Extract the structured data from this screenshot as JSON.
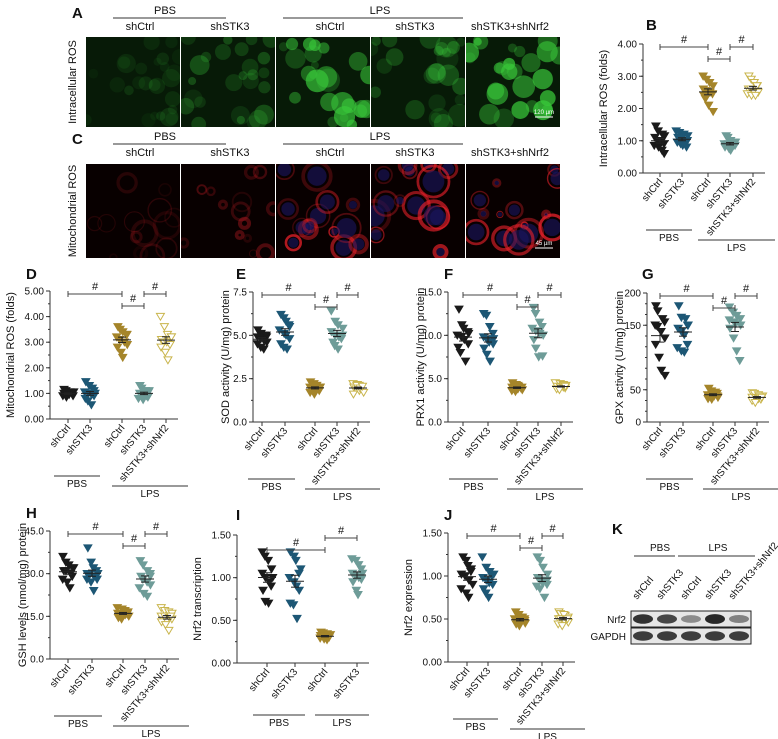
{
  "micrographs": {
    "A": {
      "label": "A",
      "row_label": "Intracellular ROS",
      "groups": [
        "PBS",
        "LPS"
      ],
      "columns": [
        "shCtrl",
        "shSTK3",
        "shCtrl",
        "shSTK3",
        "shSTK3+shNrf2"
      ],
      "scale_bar": "120 µm",
      "stain_color": "#39c83a"
    },
    "C": {
      "label": "C",
      "row_label": "Mitochondrial ROS",
      "groups": [
        "PBS",
        "LPS"
      ],
      "columns": [
        "shCtrl",
        "shSTK3",
        "shCtrl",
        "shSTK3",
        "shSTK3+shNrf2"
      ],
      "scale_bar": "45 µm",
      "stain_color": "#e8202a"
    }
  },
  "group_colors": [
    "#1a1a1a",
    "#1d5775",
    "#a5852a",
    "#6e9c98",
    "#c9b54c"
  ],
  "group_filled": [
    true,
    true,
    true,
    true,
    false
  ],
  "chart_data": [
    {
      "panel": "B",
      "type": "scatter",
      "ylabel": "Intracellular ROS (folds)",
      "yticks": [
        "0.00",
        "1.00",
        "2.00",
        "3.00",
        "4.00"
      ],
      "ylim": [
        0,
        4
      ],
      "categories": [
        "shCtrl",
        "shSTK3",
        "shCtrl",
        "shSTK3",
        "shSTK3+shNrf2"
      ],
      "groups": [
        "PBS",
        "PBS",
        "LPS",
        "LPS",
        "LPS"
      ],
      "significance": [
        {
          "pair": [
            0,
            2
          ],
          "label": "#"
        },
        {
          "pair": [
            2,
            3
          ],
          "label": "#"
        },
        {
          "pair": [
            3,
            4
          ],
          "label": "#"
        }
      ],
      "series": [
        [
          1.45,
          1.3,
          1.2,
          1.15,
          1.1,
          1.0,
          0.95,
          0.9,
          0.85,
          0.8,
          0.7,
          0.6
        ],
        [
          1.3,
          1.25,
          1.2,
          1.15,
          1.1,
          1.05,
          1.0,
          1.0,
          0.95,
          0.9,
          0.85,
          0.8
        ],
        [
          3.0,
          2.9,
          2.8,
          2.7,
          2.6,
          2.55,
          2.5,
          2.45,
          2.4,
          2.3,
          2.1,
          1.9
        ],
        [
          1.15,
          1.1,
          1.0,
          0.95,
          0.9,
          0.9,
          0.85,
          0.85,
          0.8,
          0.75,
          0.7,
          0.95
        ],
        [
          3.0,
          2.9,
          2.8,
          2.7,
          2.6,
          2.6,
          2.5,
          2.5,
          2.45,
          2.4,
          2.4,
          2.7
        ]
      ]
    },
    {
      "panel": "D",
      "type": "scatter",
      "ylabel": "Mitochondrial ROS (folds)",
      "yticks": [
        "0.00",
        "1.00",
        "2.00",
        "3.00",
        "4.00",
        "5.00"
      ],
      "ylim": [
        0,
        5
      ],
      "categories": [
        "shCtrl",
        "shSTK3",
        "shCtrl",
        "shSTK3",
        "shSTK3+shNrf2"
      ],
      "groups": [
        "PBS",
        "PBS",
        "LPS",
        "LPS",
        "LPS"
      ],
      "significance": [
        {
          "pair": [
            0,
            2
          ],
          "label": "#"
        },
        {
          "pair": [
            2,
            3
          ],
          "label": "#"
        },
        {
          "pair": [
            3,
            4
          ],
          "label": "#"
        }
      ],
      "series": [
        [
          1.15,
          1.1,
          1.05,
          1.0,
          1.0,
          0.95,
          0.95,
          0.9,
          0.9,
          0.85,
          1.0,
          1.05
        ],
        [
          1.45,
          1.3,
          1.2,
          1.1,
          1.05,
          1.0,
          0.95,
          0.9,
          0.8,
          0.7,
          0.55,
          1.0
        ],
        [
          3.6,
          3.5,
          3.4,
          3.3,
          3.2,
          3.1,
          3.0,
          2.9,
          2.8,
          2.6,
          2.4,
          3.3
        ],
        [
          1.3,
          1.2,
          1.1,
          1.05,
          1.0,
          0.95,
          0.9,
          0.85,
          0.8,
          0.75,
          1.0,
          1.1
        ],
        [
          4.0,
          3.6,
          3.3,
          3.2,
          3.1,
          3.0,
          3.0,
          2.9,
          2.8,
          2.6,
          2.3,
          3.2
        ]
      ]
    },
    {
      "panel": "E",
      "type": "scatter",
      "ylabel": "SOD activity (U/mg) protein",
      "yticks": [
        "0.0",
        "2.5",
        "5.0",
        "7.5"
      ],
      "ylim": [
        0,
        7.5
      ],
      "categories": [
        "shCtrl",
        "shSTK3",
        "shCtrl",
        "shSTK3",
        "shSTK3+shNrf2"
      ],
      "groups": [
        "PBS",
        "PBS",
        "LPS",
        "LPS",
        "LPS"
      ],
      "significance": [
        {
          "pair": [
            0,
            2
          ],
          "label": "#"
        },
        {
          "pair": [
            2,
            3
          ],
          "label": "#"
        },
        {
          "pair": [
            3,
            4
          ],
          "label": "#"
        }
      ],
      "series": [
        [
          5.3,
          5.1,
          5.0,
          4.9,
          4.9,
          4.8,
          4.7,
          4.6,
          4.5,
          4.3,
          4.2,
          5.0
        ],
        [
          6.2,
          6.0,
          5.8,
          5.5,
          5.3,
          5.1,
          5.0,
          4.8,
          4.5,
          4.3,
          4.2,
          5.6
        ],
        [
          2.3,
          2.2,
          2.1,
          2.0,
          2.0,
          1.9,
          1.9,
          1.8,
          1.7,
          1.6,
          2.1,
          2.0
        ],
        [
          6.4,
          5.8,
          5.6,
          5.4,
          5.2,
          5.0,
          4.9,
          4.8,
          4.6,
          4.4,
          4.2,
          5.0
        ],
        [
          2.2,
          2.15,
          2.1,
          2.0,
          2.0,
          1.9,
          1.8,
          1.7,
          1.6,
          2.1,
          1.95,
          2.05
        ]
      ]
    },
    {
      "panel": "F",
      "type": "scatter",
      "ylabel": "PRX1 activity (U/mg) protein",
      "yticks": [
        "0.0",
        "5.0",
        "10.0",
        "15.0"
      ],
      "ylim": [
        0,
        15
      ],
      "categories": [
        "shCtrl",
        "shSTK3",
        "shCtrl",
        "shSTK3",
        "shSTK3+shNrf2"
      ],
      "groups": [
        "PBS",
        "PBS",
        "LPS",
        "LPS",
        "LPS"
      ],
      "significance": [
        {
          "pair": [
            0,
            2
          ],
          "label": "#"
        },
        {
          "pair": [
            2,
            3
          ],
          "label": "#"
        },
        {
          "pair": [
            3,
            4
          ],
          "label": "#"
        }
      ],
      "series": [
        [
          13.0,
          11.2,
          10.8,
          10.4,
          10.0,
          9.8,
          9.5,
          9.0,
          8.6,
          8.0,
          7.0,
          10.2
        ],
        [
          12.5,
          12.3,
          11.0,
          10.2,
          9.8,
          9.5,
          9.2,
          9.0,
          8.5,
          7.8,
          7.0,
          9.6
        ],
        [
          4.5,
          4.3,
          4.2,
          4.0,
          4.0,
          3.9,
          3.8,
          3.7,
          3.6,
          3.5,
          4.1,
          3.9
        ],
        [
          13.2,
          12.5,
          11.5,
          11.0,
          10.8,
          10.5,
          10.2,
          10.0,
          9.5,
          8.5,
          7.5,
          7.6
        ],
        [
          4.5,
          4.4,
          4.3,
          4.2,
          4.1,
          4.0,
          4.0,
          3.9,
          3.8,
          3.7,
          4.2,
          4.1
        ]
      ]
    },
    {
      "panel": "G",
      "type": "scatter",
      "ylabel": "GPX activity (U/mg) protein",
      "yticks": [
        "0",
        "50",
        "150",
        "200"
      ],
      "ytick_values": [
        0,
        50,
        150,
        200
      ],
      "ylim": [
        0,
        200
      ],
      "categories": [
        "shCtrl",
        "shSTK3",
        "shCtrl",
        "shSTK3",
        "shSTK3+shNrf2"
      ],
      "groups": [
        "PBS",
        "PBS",
        "LPS",
        "LPS",
        "LPS"
      ],
      "significance": [
        {
          "pair": [
            0,
            2
          ],
          "label": "#"
        },
        {
          "pair": [
            2,
            3
          ],
          "label": "#"
        },
        {
          "pair": [
            3,
            4
          ],
          "label": "#"
        }
      ],
      "series": [
        [
          180,
          172,
          160,
          155,
          150,
          148,
          140,
          130,
          120,
          100,
          80,
          72
        ],
        [
          180,
          162,
          160,
          150,
          145,
          140,
          135,
          120,
          115,
          110,
          108,
          150
        ],
        [
          52,
          48,
          46,
          44,
          42,
          42,
          40,
          38,
          36,
          35,
          44,
          40
        ],
        [
          178,
          170,
          165,
          160,
          158,
          155,
          152,
          150,
          145,
          130,
          110,
          95
        ],
        [
          45,
          44,
          42,
          40,
          38,
          37,
          36,
          35,
          33,
          30,
          40,
          38
        ]
      ]
    },
    {
      "panel": "H",
      "type": "scatter",
      "ylabel": "GSH levels (nmol/mg) protein",
      "yticks": [
        "0.0",
        "15.0",
        "30.0",
        "45.0"
      ],
      "ylim": [
        0,
        45
      ],
      "categories": [
        "shCtrl",
        "shSTK3",
        "shCtrl",
        "shSTK3",
        "shSTK3+shNrf2"
      ],
      "groups": [
        "PBS",
        "PBS",
        "LPS",
        "LPS",
        "LPS"
      ],
      "significance": [
        {
          "pair": [
            0,
            2
          ],
          "label": "#"
        },
        {
          "pair": [
            2,
            3
          ],
          "label": "#"
        },
        {
          "pair": [
            3,
            4
          ],
          "label": "#"
        }
      ],
      "series": [
        [
          36,
          34,
          33,
          32,
          31,
          31,
          30,
          29,
          28,
          27,
          25,
          32
        ],
        [
          39,
          34,
          32,
          31,
          30,
          30,
          29,
          28,
          28,
          27,
          24,
          30
        ],
        [
          18,
          17.5,
          17,
          16.5,
          16,
          16,
          15.5,
          15,
          14.5,
          14,
          16.5,
          15.8
        ],
        [
          34.5,
          33,
          31,
          30,
          29,
          28,
          27,
          26,
          25,
          23,
          22,
          29
        ],
        [
          18,
          17,
          16.5,
          16,
          15,
          15,
          14.5,
          14,
          13,
          12,
          10,
          15
        ]
      ]
    },
    {
      "panel": "I",
      "type": "scatter",
      "ylabel": "Nrf2 transcription",
      "yticks": [
        "0.00",
        "0.50",
        "1.00",
        "1.50"
      ],
      "ylim": [
        0,
        1.5
      ],
      "categories": [
        "shCtrl",
        "shSTK3",
        "shCtrl",
        "shSTK3"
      ],
      "groups": [
        "PBS",
        "PBS",
        "LPS",
        "LPS"
      ],
      "significance": [
        {
          "pair": [
            0,
            2
          ],
          "label": "#"
        },
        {
          "pair": [
            2,
            3
          ],
          "label": "#"
        }
      ],
      "series": [
        [
          1.3,
          1.25,
          1.2,
          1.1,
          1.05,
          1.0,
          0.95,
          0.9,
          0.85,
          0.72,
          0.7,
          1.0
        ],
        [
          1.3,
          1.25,
          1.2,
          1.1,
          1.0,
          0.95,
          0.9,
          0.85,
          0.7,
          0.68,
          0.52,
          1.05
        ],
        [
          0.36,
          0.35,
          0.34,
          0.33,
          0.32,
          0.31,
          0.3,
          0.3,
          0.29,
          0.28,
          0.27,
          0.32
        ],
        [
          1.22,
          1.2,
          1.15,
          1.1,
          1.05,
          1.02,
          1.0,
          0.98,
          0.95,
          0.85,
          0.8,
          1.05
        ]
      ]
    },
    {
      "panel": "J",
      "type": "scatter",
      "ylabel": "Nrf2 expression",
      "yticks": [
        "0.00",
        "0.50",
        "1.00",
        "1.50"
      ],
      "ylim": [
        0,
        1.5
      ],
      "categories": [
        "shCtrl",
        "shSTK3",
        "shCtrl",
        "shSTK3",
        "shSTK3+shNrf2"
      ],
      "groups": [
        "PBS",
        "PBS",
        "LPS",
        "LPS",
        "LPS"
      ],
      "significance": [
        {
          "pair": [
            0,
            2
          ],
          "label": "#"
        },
        {
          "pair": [
            2,
            3
          ],
          "label": "#"
        },
        {
          "pair": [
            3,
            4
          ],
          "label": "#"
        }
      ],
      "series": [
        [
          1.22,
          1.18,
          1.12,
          1.08,
          1.02,
          1.0,
          0.95,
          0.9,
          0.85,
          0.8,
          0.75,
          1.05
        ],
        [
          1.22,
          1.1,
          1.05,
          1.0,
          0.98,
          0.95,
          0.92,
          0.9,
          0.85,
          0.8,
          0.75,
          1.02
        ],
        [
          0.58,
          0.55,
          0.52,
          0.5,
          0.5,
          0.48,
          0.46,
          0.45,
          0.44,
          0.42,
          0.52,
          0.48
        ],
        [
          1.22,
          1.18,
          1.1,
          1.02,
          0.98,
          0.95,
          0.92,
          0.9,
          0.88,
          0.85,
          0.75,
          0.95
        ],
        [
          0.58,
          0.56,
          0.54,
          0.52,
          0.5,
          0.5,
          0.48,
          0.46,
          0.44,
          0.42,
          0.55,
          0.5
        ]
      ]
    }
  ],
  "western_blot": {
    "label": "K",
    "groups": [
      "PBS",
      "LPS"
    ],
    "lanes": [
      "shCtrl",
      "shSTK3",
      "shCtrl",
      "shSTK3",
      "shSTK3+shNrf2"
    ],
    "bands": [
      {
        "name": "Nrf2",
        "intensity": [
          0.9,
          0.8,
          0.45,
          0.95,
          0.5
        ]
      },
      {
        "name": "GAPDH",
        "intensity": [
          0.85,
          0.85,
          0.85,
          0.85,
          0.85
        ]
      }
    ]
  }
}
